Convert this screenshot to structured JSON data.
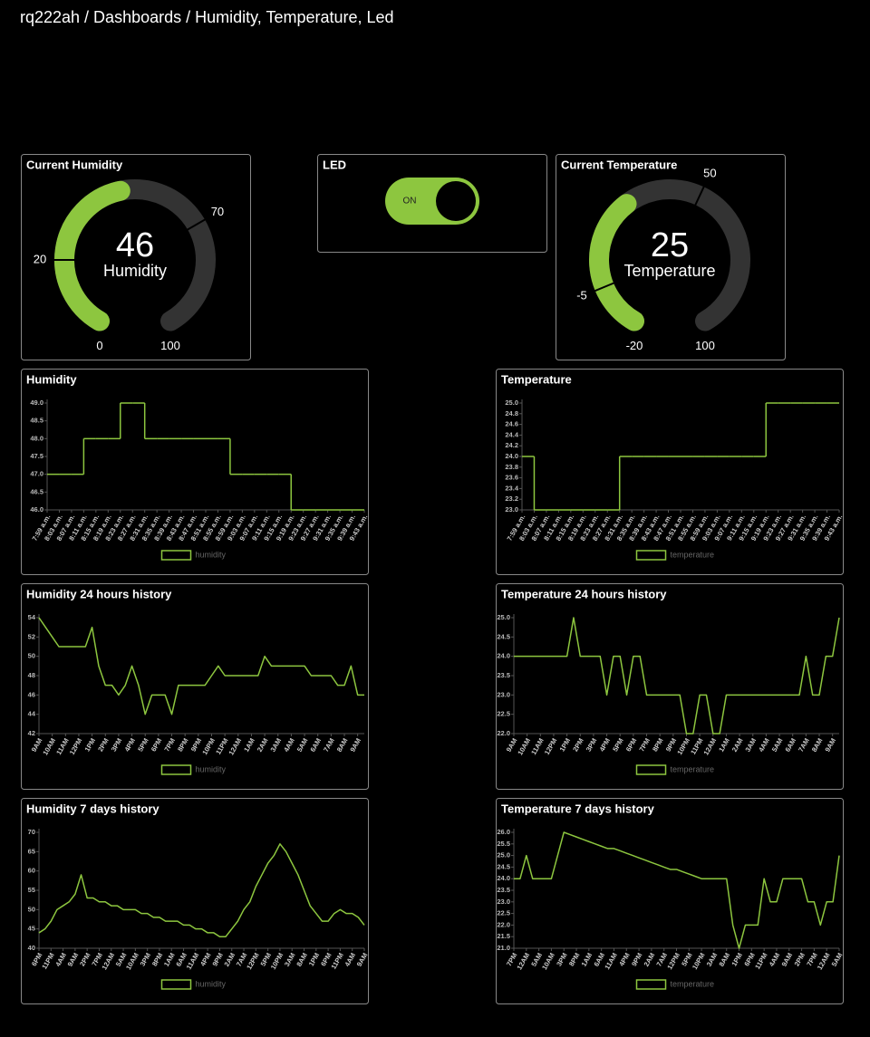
{
  "breadcrumb": "rq222ah / Dashboards / Humidity, Temperature, Led",
  "led": {
    "title": "LED",
    "state": "ON"
  },
  "chart_data": [
    {
      "type": "gauge",
      "title": "Current Humidity",
      "value": 46,
      "label": "Humidity",
      "min": 0,
      "max": 100,
      "ticks": [
        20,
        70
      ],
      "color": "#8dc63f"
    },
    {
      "type": "gauge",
      "title": "Current Temperature",
      "value": 25,
      "label": "Temperature",
      "min": -20,
      "max": 100,
      "ticks": [
        -5,
        50
      ],
      "color": "#8dc63f"
    },
    {
      "type": "line",
      "title": "Humidity",
      "step": true,
      "categories": [
        "7:59 a.m.",
        "8:03 a.m.",
        "8:07 a.m.",
        "8:11 a.m.",
        "8:15 a.m.",
        "8:19 a.m.",
        "8:23 a.m.",
        "8:27 a.m.",
        "8:31 a.m.",
        "8:35 a.m.",
        "8:39 a.m.",
        "8:43 a.m.",
        "8:47 a.m.",
        "8:51 a.m.",
        "8:55 a.m.",
        "8:59 a.m.",
        "9:03 a.m.",
        "9:07 a.m.",
        "9:11 a.m.",
        "9:15 a.m.",
        "9:19 a.m.",
        "9:23 a.m.",
        "9:27 a.m.",
        "9:31 a.m.",
        "9:35 a.m.",
        "9:39 a.m.",
        "9:43 a.m."
      ],
      "series": [
        {
          "name": "humidity",
          "color": "#8dc63f",
          "values": [
            47,
            47,
            47,
            48,
            48,
            48,
            49,
            49,
            48,
            48,
            48,
            48,
            48,
            48,
            48,
            47,
            47,
            47,
            47,
            47,
            46,
            46,
            46,
            46,
            46,
            46,
            46
          ]
        }
      ],
      "ylim": [
        46,
        49
      ],
      "yticks": [
        {
          "value": 46,
          "label": "46.0"
        },
        {
          "value": 46.5,
          "label": "46.5"
        },
        {
          "value": 47,
          "label": "47.0"
        },
        {
          "value": 47.5,
          "label": "47.5"
        },
        {
          "value": 48,
          "label": "48.0"
        },
        {
          "value": 48.5,
          "label": "48.5"
        },
        {
          "value": 49,
          "label": "49.0"
        }
      ]
    },
    {
      "type": "line",
      "title": "Temperature",
      "step": true,
      "categories": [
        "7:59 a.m.",
        "8:03 a.m.",
        "8:07 a.m.",
        "8:11 a.m.",
        "8:15 a.m.",
        "8:19 a.m.",
        "8:23 a.m.",
        "8:27 a.m.",
        "8:31 a.m.",
        "8:35 a.m.",
        "8:39 a.m.",
        "8:43 a.m.",
        "8:47 a.m.",
        "8:51 a.m.",
        "8:55 a.m.",
        "8:59 a.m.",
        "9:03 a.m.",
        "9:07 a.m.",
        "9:11 a.m.",
        "9:15 a.m.",
        "9:19 a.m.",
        "9:23 a.m.",
        "9:27 a.m.",
        "9:31 a.m.",
        "9:35 a.m.",
        "9:39 a.m.",
        "9:43 a.m."
      ],
      "series": [
        {
          "name": "temperature",
          "color": "#8dc63f",
          "values": [
            24,
            23,
            23,
            23,
            23,
            23,
            23,
            23,
            24,
            24,
            24,
            24,
            24,
            24,
            24,
            24,
            24,
            24,
            24,
            24,
            25,
            25,
            25,
            25,
            25,
            25,
            25
          ]
        }
      ],
      "ylim": [
        23,
        25
      ],
      "yticks": [
        {
          "value": 23,
          "label": "23.0"
        },
        {
          "value": 23.2,
          "label": "23.2"
        },
        {
          "value": 23.4,
          "label": "23.4"
        },
        {
          "value": 23.6,
          "label": "23.6"
        },
        {
          "value": 23.8,
          "label": "23.8"
        },
        {
          "value": 24,
          "label": "24.0"
        },
        {
          "value": 24.2,
          "label": "24.2"
        },
        {
          "value": 24.4,
          "label": "24.4"
        },
        {
          "value": 24.6,
          "label": "24.6"
        },
        {
          "value": 24.8,
          "label": "24.8"
        },
        {
          "value": 25,
          "label": "25.0"
        }
      ]
    },
    {
      "type": "line",
      "title": "Humidity 24 hours history",
      "categories": [
        "9AM",
        null,
        "10AM",
        null,
        "11AM",
        null,
        "12PM",
        null,
        "1PM",
        null,
        "2PM",
        null,
        "3PM",
        null,
        "4PM",
        null,
        "5PM",
        null,
        "6PM",
        null,
        "7PM",
        null,
        "8PM",
        null,
        "9PM",
        null,
        "10PM",
        null,
        "11PM",
        null,
        "12AM",
        null,
        "1AM",
        null,
        "2AM",
        null,
        "3AM",
        null,
        "4AM",
        null,
        "5AM",
        null,
        "6AM",
        null,
        "7AM",
        null,
        "8AM",
        null,
        "9AM",
        null
      ],
      "series": [
        {
          "name": "humidity",
          "color": "#8dc63f",
          "values": [
            54,
            53,
            52,
            51,
            51,
            51,
            51,
            51,
            53,
            49,
            47,
            47,
            46,
            47,
            49,
            47,
            44,
            46,
            46,
            46,
            44,
            47,
            47,
            47,
            47,
            47,
            48,
            49,
            48,
            48,
            48,
            48,
            48,
            48,
            50,
            49,
            49,
            49,
            49,
            49,
            49,
            48,
            48,
            48,
            48,
            47,
            47,
            49,
            46,
            46
          ]
        }
      ],
      "ylim": [
        42,
        54
      ],
      "yticks": [
        42,
        44,
        46,
        48,
        50,
        52,
        54
      ]
    },
    {
      "type": "line",
      "title": "Temperature 24 hours history",
      "categories": [
        "9AM",
        null,
        "10AM",
        null,
        "11AM",
        null,
        "12PM",
        null,
        "1PM",
        null,
        "2PM",
        null,
        "3PM",
        null,
        "4PM",
        null,
        "5PM",
        null,
        "6PM",
        null,
        "7PM",
        null,
        "8PM",
        null,
        "9PM",
        null,
        "10PM",
        null,
        "11PM",
        null,
        "12AM",
        null,
        "1AM",
        null,
        "2AM",
        null,
        "3AM",
        null,
        "4AM",
        null,
        "5AM",
        null,
        "6AM",
        null,
        "7AM",
        null,
        "8AM",
        null,
        "9AM",
        null
      ],
      "series": [
        {
          "name": "temperature",
          "color": "#8dc63f",
          "values": [
            24,
            24,
            24,
            24,
            24,
            24,
            24,
            24,
            24,
            25,
            24,
            24,
            24,
            24,
            23,
            24,
            24,
            23,
            24,
            24,
            23,
            23,
            23,
            23,
            23,
            23,
            22,
            22,
            23,
            23,
            22,
            22,
            23,
            23,
            23,
            23,
            23,
            23,
            23,
            23,
            23,
            23,
            23,
            23,
            24,
            23,
            23,
            24,
            24,
            25
          ]
        }
      ],
      "ylim": [
        22,
        25
      ],
      "yticks": [
        {
          "value": 22,
          "label": "22.0"
        },
        {
          "value": 22.5,
          "label": "22.5"
        },
        {
          "value": 23,
          "label": "23.0"
        },
        {
          "value": 23.5,
          "label": "23.5"
        },
        {
          "value": 24,
          "label": "24.0"
        },
        {
          "value": 24.5,
          "label": "24.5"
        },
        {
          "value": 25,
          "label": "25.0"
        }
      ]
    },
    {
      "type": "line",
      "title": "Humidity 7 days history",
      "categories": [
        "6PM",
        null,
        "11PM",
        null,
        "4AM",
        null,
        "9AM",
        null,
        "2PM",
        null,
        "7PM",
        null,
        "12AM",
        null,
        "5AM",
        null,
        "10AM",
        null,
        "3PM",
        null,
        "8PM",
        null,
        "1AM",
        null,
        "6AM",
        null,
        "11AM",
        null,
        "4PM",
        null,
        "9PM",
        null,
        "2AM",
        null,
        "7AM",
        null,
        "12PM",
        null,
        "5PM",
        null,
        "10PM",
        null,
        "3AM",
        null,
        "8AM",
        null,
        "1PM",
        null,
        "6PM",
        null,
        "11PM",
        null,
        "4AM",
        null,
        "9AM"
      ],
      "series": [
        {
          "name": "humidity",
          "color": "#8dc63f",
          "values": [
            44,
            45,
            47,
            50,
            51,
            52,
            54,
            59,
            53,
            53,
            52,
            52,
            51,
            51,
            50,
            50,
            50,
            49,
            49,
            48,
            48,
            47,
            47,
            47,
            46,
            46,
            45,
            45,
            44,
            44,
            43,
            43,
            45,
            47,
            50,
            52,
            56,
            59,
            62,
            64,
            67,
            65,
            62,
            59,
            55,
            51,
            49,
            47,
            47,
            49,
            50,
            49,
            49,
            48,
            46
          ]
        }
      ],
      "ylim": [
        40,
        70
      ],
      "yticks": [
        40,
        45,
        50,
        55,
        60,
        65,
        70
      ]
    },
    {
      "type": "line",
      "title": "Temperature 7 days history",
      "categories": [
        "7PM",
        null,
        "12AM",
        null,
        "5AM",
        null,
        "10AM",
        null,
        "3PM",
        null,
        "8PM",
        null,
        "1AM",
        null,
        "6AM",
        null,
        "11AM",
        null,
        "4PM",
        null,
        "9PM",
        null,
        "2AM",
        null,
        "7AM",
        null,
        "12PM",
        null,
        "5PM",
        null,
        "10PM",
        null,
        "3AM",
        null,
        "8AM",
        null,
        "1PM",
        null,
        "6PM",
        null,
        "11PM",
        null,
        "4AM",
        null,
        "9AM",
        null,
        "2PM",
        null,
        "7PM",
        null,
        "12AM",
        null,
        "5AM"
      ],
      "series": [
        {
          "name": "temperature",
          "color": "#8dc63f",
          "values": [
            24,
            24,
            25,
            24,
            24,
            24,
            24,
            25,
            26,
            25.9,
            25.8,
            25.7,
            25.6,
            25.5,
            25.4,
            25.3,
            25.3,
            25.2,
            25.1,
            25,
            24.9,
            24.8,
            24.7,
            24.6,
            24.5,
            24.4,
            24.4,
            24.3,
            24.2,
            24.1,
            24,
            24,
            24,
            24,
            24,
            22,
            21,
            22,
            22,
            22,
            24,
            23,
            23,
            24,
            24,
            24,
            24,
            23,
            23,
            22,
            23,
            23,
            25
          ]
        }
      ],
      "ylim": [
        21,
        26
      ],
      "yticks": [
        {
          "value": 21,
          "label": "21.0"
        },
        {
          "value": 21.5,
          "label": "21.5"
        },
        {
          "value": 22,
          "label": "22.0"
        },
        {
          "value": 22.5,
          "label": "22.5"
        },
        {
          "value": 23,
          "label": "23.0"
        },
        {
          "value": 23.5,
          "label": "23.5"
        },
        {
          "value": 24,
          "label": "24.0"
        },
        {
          "value": 24.5,
          "label": "24.5"
        },
        {
          "value": 25,
          "label": "25.0"
        },
        {
          "value": 25.5,
          "label": "25.5"
        },
        {
          "value": 26,
          "label": "26.0"
        }
      ]
    }
  ]
}
